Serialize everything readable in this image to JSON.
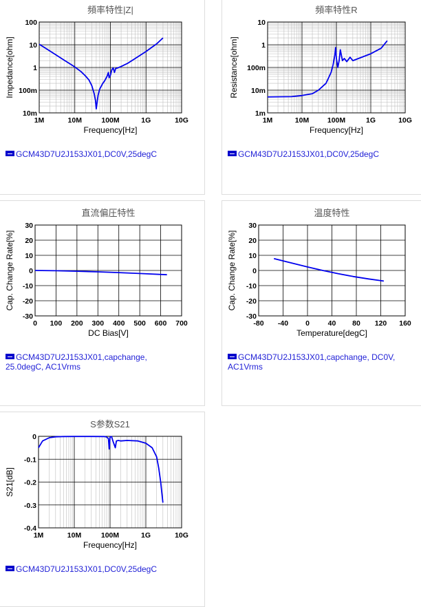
{
  "chart_data": [
    {
      "id": "impedance",
      "type": "line",
      "title": "頻率特性|Z|",
      "xlabel": "Frequency[Hz]",
      "ylabel": "Impedance[ohm]",
      "xscale": "log",
      "yscale": "log",
      "xlim": [
        1000000,
        10000000000
      ],
      "ylim": [
        0.01,
        100
      ],
      "xticks": [
        "1M",
        "10M",
        "100M",
        "1G",
        "10G"
      ],
      "yticks": [
        "100",
        "10",
        "1",
        "100m",
        "10m"
      ],
      "grid": true,
      "series": [
        {
          "name": "GCM43D7U2J153JX01,DC0V,25degC",
          "color": "#0000ee",
          "x": [
            1000000,
            2000000,
            5000000,
            10000000,
            15000000,
            20000000,
            25000000,
            30000000,
            35000000,
            38000000,
            40000000,
            45000000,
            50000000,
            60000000,
            70000000,
            80000000,
            88000000,
            92000000,
            100000000,
            110000000,
            120000000,
            130000000,
            140000000,
            160000000,
            200000000,
            300000000,
            500000000,
            1000000000,
            2000000000,
            3000000000
          ],
          "y": [
            10.6,
            5.3,
            2.1,
            1.05,
            0.65,
            0.42,
            0.28,
            0.16,
            0.07,
            0.035,
            0.015,
            0.06,
            0.11,
            0.19,
            0.27,
            0.4,
            0.6,
            0.35,
            0.45,
            0.8,
            0.95,
            0.6,
            0.9,
            0.95,
            1.1,
            1.5,
            2.5,
            5.0,
            11.0,
            20.0
          ]
        }
      ]
    },
    {
      "id": "resistance",
      "type": "line",
      "title": "頻率特性R",
      "xlabel": "Frequency[Hz]",
      "ylabel": "Resistance[ohm]",
      "xscale": "log",
      "yscale": "log",
      "xlim": [
        1000000,
        10000000000
      ],
      "ylim": [
        0.001,
        10
      ],
      "xticks": [
        "1M",
        "10M",
        "100M",
        "1G",
        "10G"
      ],
      "yticks": [
        "10",
        "1",
        "100m",
        "10m",
        "1m"
      ],
      "grid": true,
      "series": [
        {
          "name": "GCM43D7U2J153JX01,DC0V,25degC",
          "color": "#0000ee",
          "x": [
            1000000,
            5000000,
            10000000,
            20000000,
            30000000,
            50000000,
            70000000,
            80000000,
            90000000,
            95000000,
            100000000,
            110000000,
            120000000,
            130000000,
            150000000,
            170000000,
            200000000,
            250000000,
            300000000,
            1000000000,
            2000000000,
            3000000000
          ],
          "y": [
            0.005,
            0.0052,
            0.0058,
            0.007,
            0.01,
            0.02,
            0.06,
            0.13,
            0.35,
            0.75,
            0.25,
            0.1,
            0.2,
            0.6,
            0.2,
            0.25,
            0.18,
            0.28,
            0.2,
            0.4,
            0.7,
            1.5
          ]
        }
      ]
    },
    {
      "id": "dcbias",
      "type": "line",
      "title": "直流偏圧特性",
      "xlabel": "DC Bias[V]",
      "ylabel": "Cap. Change Rate[%]",
      "xlim": [
        0,
        700
      ],
      "ylim": [
        -30,
        30
      ],
      "xticks": [
        "0",
        "100",
        "200",
        "300",
        "400",
        "500",
        "600",
        "700"
      ],
      "yticks": [
        "30",
        "20",
        "10",
        "0",
        "-10",
        "-20",
        "-30"
      ],
      "grid": true,
      "series": [
        {
          "name": "GCM43D7U2J153JX01,capchange, 25.0degC, AC1Vrms",
          "color": "#0000ee",
          "x": [
            0,
            100,
            200,
            300,
            400,
            500,
            630
          ],
          "y": [
            0,
            -0.2,
            -0.5,
            -0.9,
            -1.4,
            -2.0,
            -2.8
          ]
        }
      ]
    },
    {
      "id": "temperature",
      "type": "line",
      "title": "温度特性",
      "xlabel": "Temperature[degC]",
      "ylabel": "Cap. Change Rate[%]",
      "xlim": [
        -80,
        160
      ],
      "ylim": [
        -30,
        30
      ],
      "xticks": [
        "-80",
        "-40",
        "0",
        "40",
        "80",
        "120",
        "160"
      ],
      "yticks": [
        "30",
        "20",
        "10",
        "0",
        "-10",
        "-20",
        "-30"
      ],
      "grid": true,
      "series": [
        {
          "name": "GCM43D7U2J153JX01,capchange, DC0V, AC1Vrms",
          "color": "#0000ee",
          "x": [
            -55,
            -25,
            0,
            25,
            50,
            75,
            100,
            125
          ],
          "y": [
            7.8,
            4.8,
            2.3,
            0,
            -2.1,
            -4.0,
            -5.6,
            -7.0
          ]
        }
      ]
    },
    {
      "id": "s21",
      "type": "line",
      "title": "S参数S21",
      "xlabel": "Frequency[Hz]",
      "ylabel": "S21[dB]",
      "xscale": "log",
      "xlim": [
        1000000,
        10000000000
      ],
      "ylim": [
        -0.4,
        0
      ],
      "xticks": [
        "1M",
        "10M",
        "100M",
        "1G",
        "10G"
      ],
      "yticks": [
        "0",
        "-0.1",
        "-0.2",
        "-0.3",
        "-0.4"
      ],
      "grid": true,
      "series": [
        {
          "name": "GCM43D7U2J153JX01,DC0V,25degC",
          "color": "#0000ee",
          "x": [
            1000000,
            1300000,
            2000000,
            3000000,
            5000000,
            10000000,
            30000000,
            70000000,
            80000000,
            90000000,
            95000000,
            100000000,
            110000000,
            120000000,
            140000000,
            150000000,
            170000000,
            200000000,
            300000000,
            600000000,
            1000000000,
            1500000000,
            2000000000,
            2300000000,
            2600000000,
            3000000000
          ],
          "y": [
            -0.05,
            -0.02,
            -0.006,
            -0.002,
            -0.001,
            -0.0005,
            -0.0005,
            -0.001,
            -0.003,
            -0.01,
            -0.055,
            -0.003,
            -0.001,
            -0.02,
            -0.05,
            -0.02,
            -0.018,
            -0.02,
            -0.018,
            -0.02,
            -0.03,
            -0.05,
            -0.09,
            -0.14,
            -0.2,
            -0.29
          ]
        }
      ]
    }
  ]
}
